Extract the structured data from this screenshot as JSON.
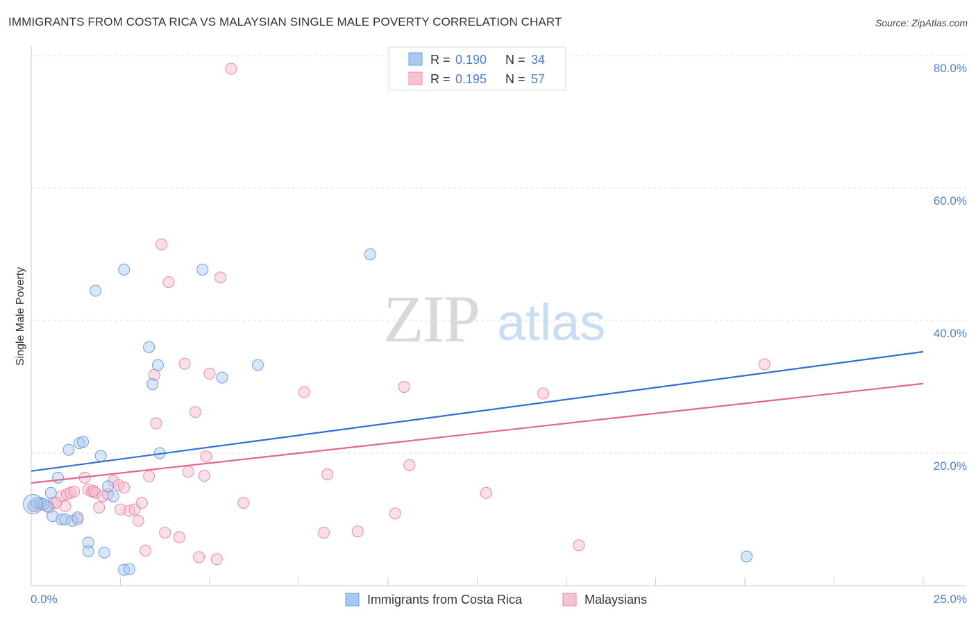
{
  "title": "IMMIGRANTS FROM COSTA RICA VS MALAYSIAN SINGLE MALE POVERTY CORRELATION CHART",
  "source": "Source: ZipAtlas.com",
  "watermark": {
    "zip": "ZIP",
    "atlas": "atlas"
  },
  "colors": {
    "blue_fill": "#a9c8f2",
    "blue_stroke": "#6d9fe0",
    "blue_line": "#2f6fd1",
    "pink_fill": "#f6b8cc",
    "pink_stroke": "#e88aa8",
    "pink_line": "#e06590",
    "tick_text": "#4f7fd0",
    "grid": "#dddddd"
  },
  "chart_data": {
    "type": "scatter",
    "xlabel": "",
    "ylabel": "Single Male Poverty",
    "xlim": [
      0,
      25
    ],
    "ylim": [
      0,
      80
    ],
    "x_tick_labels": [
      "0.0%",
      "25.0%"
    ],
    "y_tick_labels": [
      "20.0%",
      "40.0%",
      "60.0%",
      "80.0%"
    ],
    "y_tick_values": [
      20,
      40,
      60,
      80
    ],
    "legend": [
      {
        "name": "Immigrants from Costa Rica",
        "r_label": "R =",
        "r_value": "0.190",
        "n_label": "N =",
        "n_value": "34"
      },
      {
        "name": "Malaysians",
        "r_label": "R =",
        "r_value": "0.195",
        "n_label": "N =",
        "n_value": "57"
      }
    ],
    "series": [
      {
        "name": "Immigrants from Costa Rica",
        "trend": {
          "x": [
            0,
            25
          ],
          "y": [
            17.3,
            35.3
          ]
        },
        "points": [
          [
            0.05,
            12.0
          ],
          [
            0.25,
            12.5
          ],
          [
            0.45,
            12.0
          ],
          [
            0.55,
            14.0
          ],
          [
            0.6,
            10.5
          ],
          [
            0.75,
            16.3
          ],
          [
            0.85,
            10.0
          ],
          [
            0.95,
            10.0
          ],
          [
            1.05,
            20.5
          ],
          [
            1.15,
            9.8
          ],
          [
            1.3,
            10.3
          ],
          [
            1.35,
            21.5
          ],
          [
            1.45,
            21.7
          ],
          [
            1.6,
            6.5
          ],
          [
            1.6,
            5.2
          ],
          [
            1.8,
            44.5
          ],
          [
            1.95,
            19.6
          ],
          [
            2.05,
            5.0
          ],
          [
            2.15,
            15.0
          ],
          [
            2.3,
            13.5
          ],
          [
            2.6,
            47.7
          ],
          [
            2.6,
            2.4
          ],
          [
            2.75,
            2.5
          ],
          [
            3.3,
            36.0
          ],
          [
            3.4,
            30.4
          ],
          [
            3.55,
            33.3
          ],
          [
            3.6,
            20.0
          ],
          [
            4.8,
            47.7
          ],
          [
            5.35,
            31.4
          ],
          [
            6.35,
            33.3
          ],
          [
            9.5,
            50.0
          ],
          [
            20.05,
            4.4
          ],
          [
            0.15,
            12.5
          ],
          [
            0.35,
            12.3
          ]
        ]
      },
      {
        "name": "Malaysians",
        "trend": {
          "x": [
            0,
            25
          ],
          "y": [
            15.5,
            30.5
          ]
        },
        "points": [
          [
            0.1,
            12.0
          ],
          [
            0.25,
            12.2
          ],
          [
            0.5,
            11.8
          ],
          [
            0.6,
            12.5
          ],
          [
            0.85,
            13.5
          ],
          [
            0.95,
            12.0
          ],
          [
            1.0,
            13.8
          ],
          [
            1.1,
            14.0
          ],
          [
            1.2,
            14.2
          ],
          [
            1.3,
            10.0
          ],
          [
            1.5,
            16.3
          ],
          [
            1.6,
            14.5
          ],
          [
            1.7,
            14.2
          ],
          [
            1.8,
            14.0
          ],
          [
            1.9,
            11.8
          ],
          [
            2.0,
            13.5
          ],
          [
            2.15,
            13.8
          ],
          [
            2.3,
            15.8
          ],
          [
            2.45,
            15.2
          ],
          [
            2.6,
            14.8
          ],
          [
            2.5,
            11.5
          ],
          [
            2.75,
            11.3
          ],
          [
            2.9,
            11.5
          ],
          [
            3.0,
            9.8
          ],
          [
            3.1,
            12.5
          ],
          [
            3.2,
            5.3
          ],
          [
            3.3,
            16.5
          ],
          [
            3.45,
            31.8
          ],
          [
            3.5,
            24.5
          ],
          [
            3.65,
            51.5
          ],
          [
            3.75,
            8.0
          ],
          [
            3.85,
            45.8
          ],
          [
            4.15,
            7.3
          ],
          [
            4.3,
            33.5
          ],
          [
            4.4,
            17.2
          ],
          [
            4.6,
            26.2
          ],
          [
            4.7,
            4.3
          ],
          [
            4.85,
            16.6
          ],
          [
            4.9,
            19.5
          ],
          [
            5.0,
            32.0
          ],
          [
            5.2,
            4.0
          ],
          [
            5.3,
            46.5
          ],
          [
            5.6,
            78.0
          ],
          [
            5.95,
            12.5
          ],
          [
            7.65,
            29.2
          ],
          [
            8.2,
            8.0
          ],
          [
            8.3,
            16.8
          ],
          [
            9.15,
            8.2
          ],
          [
            10.2,
            10.9
          ],
          [
            10.45,
            30.0
          ],
          [
            10.6,
            18.2
          ],
          [
            12.75,
            14.0
          ],
          [
            14.35,
            29.0
          ],
          [
            15.35,
            6.1
          ],
          [
            20.55,
            33.4
          ],
          [
            0.7,
            12.5
          ],
          [
            1.75,
            14.3
          ]
        ]
      }
    ]
  }
}
